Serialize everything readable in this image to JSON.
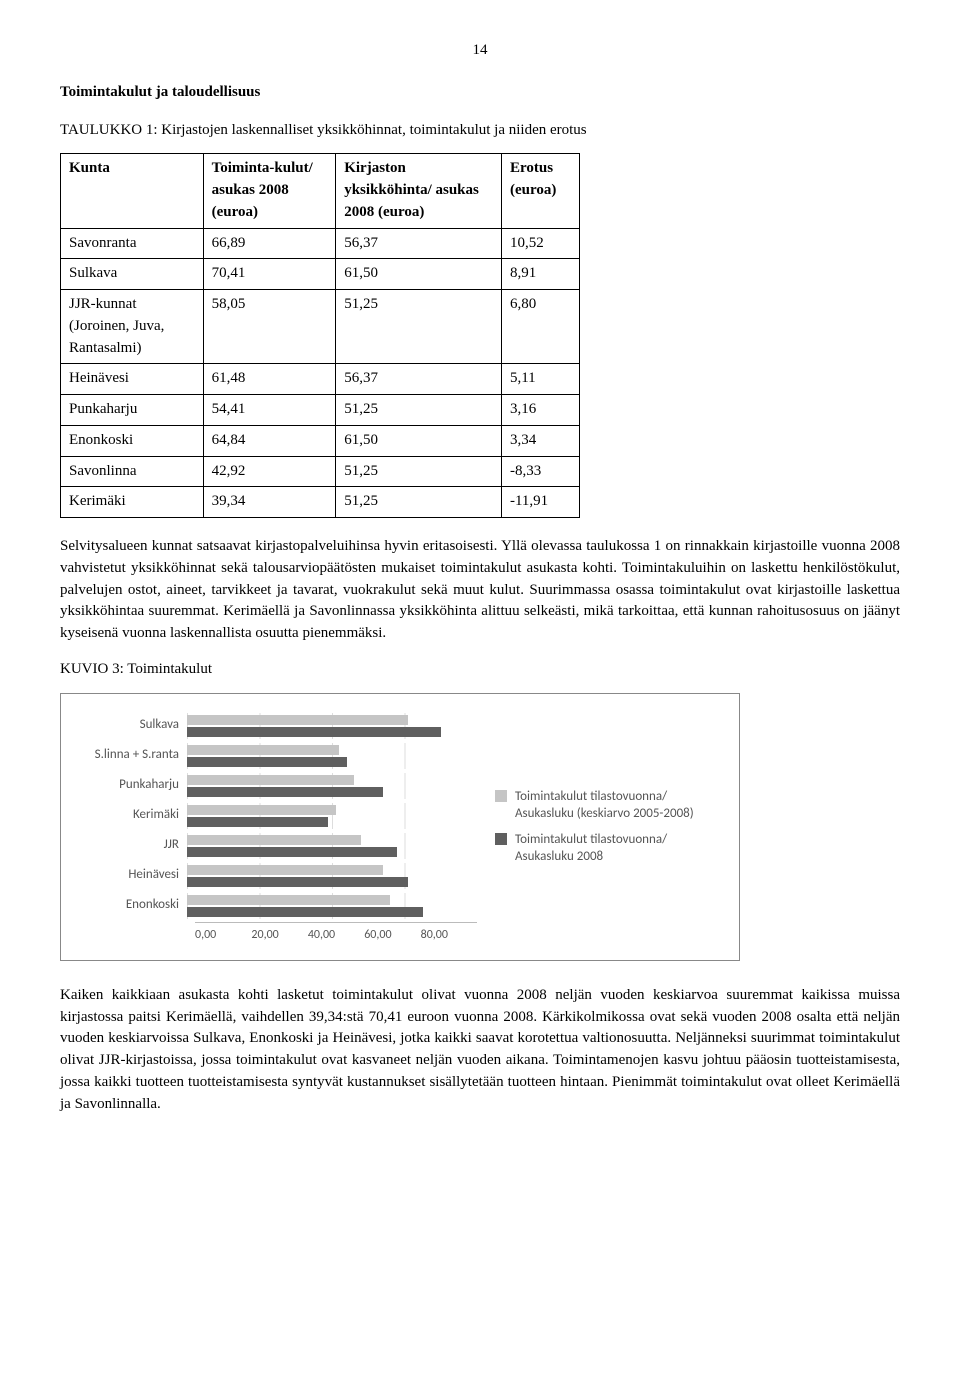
{
  "page_number": "14",
  "section_title": "Toimintakulut ja taloudellisuus",
  "table_caption": "TAULUKKO 1: Kirjastojen laskennalliset yksikköhinnat, toimintakulut ja niiden erotus",
  "table": {
    "headers": [
      "Kunta",
      "Toiminta-kulut/ asukas 2008 (euroa)",
      "Kirjaston yksikköhinta/ asukas 2008 (euroa)",
      "Erotus (euroa)"
    ],
    "rows": [
      [
        "Savonranta",
        "66,89",
        "56,37",
        "10,52"
      ],
      [
        "Sulkava",
        "70,41",
        "61,50",
        "8,91"
      ],
      [
        "JJR-kunnat (Joroinen, Juva, Rantasalmi)",
        "58,05",
        "51,25",
        "6,80"
      ],
      [
        "Heinävesi",
        "61,48",
        "56,37",
        "5,11"
      ],
      [
        "Punkaharju",
        "54,41",
        "51,25",
        "3,16"
      ],
      [
        "Enonkoski",
        "64,84",
        "61,50",
        "3,34"
      ],
      [
        "Savonlinna",
        "42,92",
        "51,25",
        "-8,33"
      ],
      [
        "Kerimäki",
        "39,34",
        "51,25",
        "-11,91"
      ]
    ]
  },
  "para1": "Selvitysalueen kunnat satsaavat kirjastopalveluihinsa hyvin eritasoisesti. Yllä olevassa taulukossa 1 on rinnakkain kirjastoille vuonna 2008 vahvistetut yksikköhinnat sekä talousarviopäätösten mukaiset toimintakulut asukasta kohti. Toimintakuluihin on laskettu henkilöstökulut, palvelujen ostot, aineet, tarvikkeet ja tavarat, vuokrakulut sekä muut kulut. Suurimmassa osassa toimintakulut ovat kirjastoille laskettua yksikköhintaa suuremmat. Kerimäellä ja Savonlinnassa yksikköhinta alittuu selkeästi, mikä tarkoittaa, että kunnan rahoitusosuus on jäänyt kyseisenä vuonna laskennallista osuutta pienemmäksi.",
  "chart_caption": "KUVIO 3: Toimintakulut",
  "chart": {
    "type": "bar",
    "xlim": [
      0,
      80
    ],
    "xticks": [
      "0,00",
      "20,00",
      "40,00",
      "60,00",
      "80,00"
    ],
    "categories": [
      "Sulkava",
      "S.linna + S.ranta",
      "Punkaharju",
      "Kerimäki",
      "JJR",
      "Heinävesi",
      "Enonkoski"
    ],
    "series_avg_label": "Toimintakulut tilastovuonna/ Asukasluku (keskiarvo 2005-2008)",
    "series_cur_label": "Toimintakulut tilastovuonna/ Asukasluku 2008",
    "avg_color": "#c5c5c5",
    "cur_color": "#5f5f5f",
    "values_avg": [
      61,
      42,
      46,
      41,
      48,
      54,
      56
    ],
    "values_cur": [
      70,
      44,
      54,
      39,
      58,
      61,
      65
    ],
    "label_fontsize": 13,
    "background_color": "#ffffff",
    "grid_color": "#dddddd"
  },
  "para2": "Kaiken kaikkiaan asukasta kohti lasketut toimintakulut olivat vuonna 2008 neljän vuoden keskiarvoa suuremmat kaikissa muissa kirjastossa paitsi Kerimäellä, vaihdellen 39,34:stä 70,41 euroon vuonna 2008. Kärkikolmikossa ovat sekä vuoden 2008 osalta että neljän vuoden keskiarvoissa Sulkava, Enonkoski ja Heinävesi, jotka kaikki saavat korotettua valtionosuutta. Neljänneksi suurimmat toimintakulut olivat JJR-kirjastoissa, jossa toimintakulut ovat kasvaneet neljän vuoden aikana. Toimintamenojen kasvu johtuu pääosin tuotteistamisesta, jossa kaikki tuotteen tuotteistamisesta syntyvät kustannukset sisällytetään tuotteen hintaan. Pienimmät toimintakulut ovat olleet Kerimäellä ja Savonlinnalla."
}
